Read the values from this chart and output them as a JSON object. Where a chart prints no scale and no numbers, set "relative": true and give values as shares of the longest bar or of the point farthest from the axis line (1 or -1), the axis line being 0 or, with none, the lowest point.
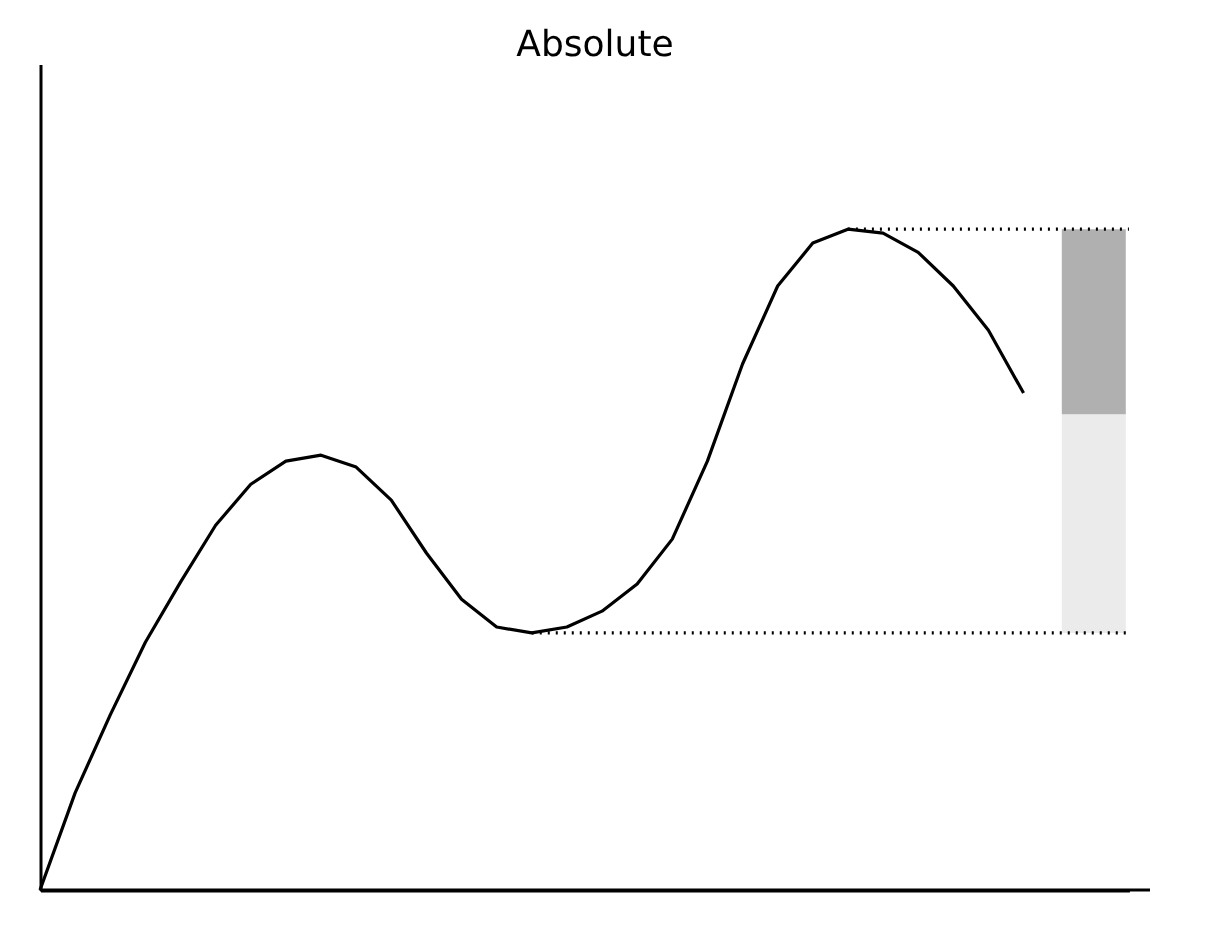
{
  "chart_data": {
    "type": "line",
    "title": "Absolute",
    "relative": true,
    "grid": false,
    "bands": [
      {
        "axis": "y",
        "from": 0.389,
        "to": 0.72,
        "color": "#ebebeb"
      },
      {
        "axis": "y",
        "from": 0.72,
        "to": 1.0,
        "color": "#b0b0b0"
      }
    ],
    "categories": [
      null,
      null,
      null,
      null,
      null,
      null,
      null,
      null,
      null,
      null,
      null,
      null,
      null,
      null,
      null,
      null,
      null,
      null,
      null,
      null,
      null,
      null,
      null,
      null,
      null,
      null,
      null,
      null,
      null,
      null,
      null,
      null
    ],
    "series": [
      {
        "color": "#000000",
        "line_style": "solid",
        "values": [
          0,
          0.147,
          0.265,
          0.375,
          0.466,
          0.552,
          0.614,
          0.649,
          0.658,
          0.64,
          0.59,
          0.51,
          0.44,
          0.398,
          0.389,
          0.398,
          0.422,
          0.463,
          0.531,
          0.649,
          0.796,
          0.914,
          0.979,
          1.0,
          0.994,
          0.965,
          0.914,
          0.847,
          0.752,
          null,
          null,
          null
        ]
      },
      {
        "color": "#000000",
        "line_style": "dotted",
        "values": [
          null,
          null,
          null,
          null,
          null,
          null,
          null,
          null,
          null,
          null,
          null,
          null,
          null,
          null,
          null,
          null,
          null,
          null,
          null,
          null,
          null,
          null,
          null,
          1.0,
          1.0,
          1.0,
          1.0,
          1.0,
          1.0,
          1.0,
          1.0,
          1.0
        ]
      },
      {
        "color": "#000000",
        "line_style": "dotted",
        "values": [
          null,
          null,
          null,
          null,
          null,
          null,
          null,
          null,
          null,
          null,
          null,
          null,
          null,
          null,
          0.389,
          0.389,
          0.389,
          0.389,
          0.389,
          0.389,
          0.389,
          0.389,
          0.389,
          0.389,
          0.389,
          0.389,
          0.389,
          0.389,
          0.389,
          0.389,
          0.389,
          0.389
        ]
      }
    ]
  }
}
